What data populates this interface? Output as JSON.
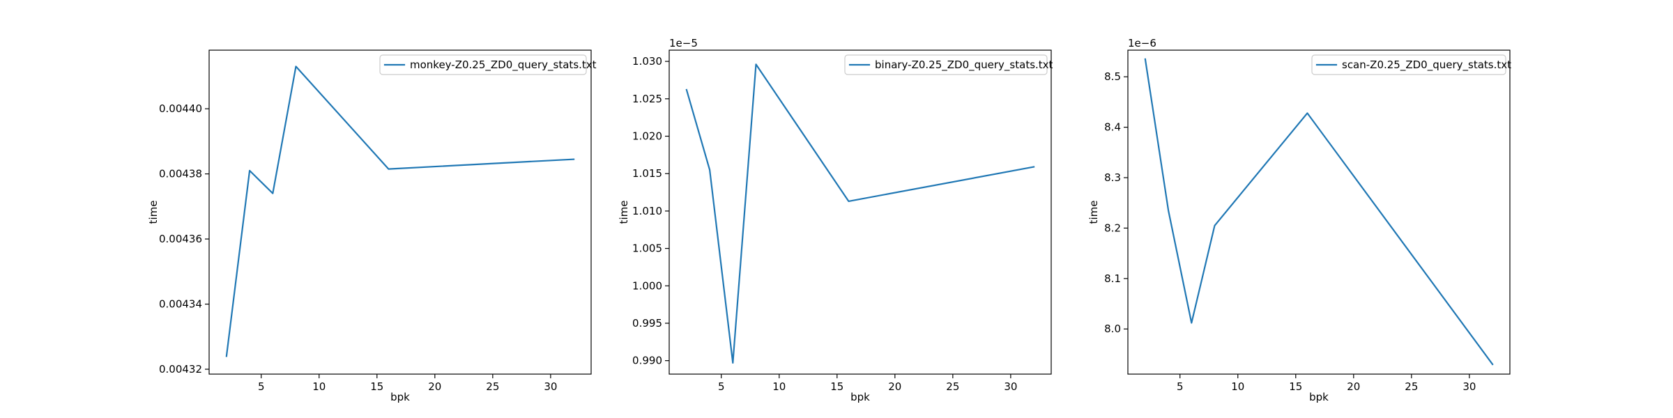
{
  "chart_data": [
    {
      "type": "line",
      "xlabel": "bpk",
      "ylabel": "time",
      "offset_label": "",
      "xlim": [
        0.5,
        33.5
      ],
      "ylim": [
        0.0043185,
        0.004418
      ],
      "xticks": [
        5,
        10,
        15,
        20,
        25,
        30
      ],
      "xtick_labels": [
        "5",
        "10",
        "15",
        "20",
        "25",
        "30"
      ],
      "yticks": [
        0.00432,
        0.00434,
        0.00436,
        0.00438,
        0.0044
      ],
      "ytick_labels": [
        "0.00432",
        "0.00434",
        "0.00436",
        "0.00438",
        "0.00440"
      ],
      "legend_position": "upper right",
      "grid": false,
      "series": [
        {
          "name": "monkey-Z0.25_ZD0_query_stats.txt",
          "color": "#1f77b4",
          "x": [
            2,
            4,
            6,
            8,
            16,
            32
          ],
          "y": [
            0.004324,
            0.004381,
            0.004374,
            0.004413,
            0.0043815,
            0.0043845
          ]
        }
      ]
    },
    {
      "type": "line",
      "xlabel": "bpk",
      "ylabel": "time",
      "offset_label": "1e−5",
      "xlim": [
        0.5,
        33.5
      ],
      "ylim": [
        0.9882,
        1.0315
      ],
      "xticks": [
        5,
        10,
        15,
        20,
        25,
        30
      ],
      "xtick_labels": [
        "5",
        "10",
        "15",
        "20",
        "25",
        "30"
      ],
      "yticks": [
        0.99,
        0.995,
        1.0,
        1.005,
        1.01,
        1.015,
        1.02,
        1.025,
        1.03
      ],
      "ytick_labels": [
        "0.990",
        "0.995",
        "1.000",
        "1.005",
        "1.010",
        "1.015",
        "1.020",
        "1.025",
        "1.030"
      ],
      "legend_position": "upper right",
      "grid": false,
      "series": [
        {
          "name": "binary-Z0.25_ZD0_query_stats.txt",
          "color": "#1f77b4",
          "x": [
            2,
            4,
            6,
            8,
            16,
            32
          ],
          "y": [
            1.0262,
            1.0155,
            0.9897,
            1.0296,
            1.0113,
            1.0159
          ]
        }
      ]
    },
    {
      "type": "line",
      "xlabel": "bpk",
      "ylabel": "time",
      "offset_label": "1e−6",
      "xlim": [
        0.5,
        33.5
      ],
      "ylim": [
        7.9105,
        8.5528
      ],
      "xticks": [
        5,
        10,
        15,
        20,
        25,
        30
      ],
      "xtick_labels": [
        "5",
        "10",
        "15",
        "20",
        "25",
        "30"
      ],
      "yticks": [
        8.0,
        8.1,
        8.2,
        8.3,
        8.4,
        8.5
      ],
      "ytick_labels": [
        "8.0",
        "8.1",
        "8.2",
        "8.3",
        "8.4",
        "8.5"
      ],
      "legend_position": "upper right",
      "grid": false,
      "series": [
        {
          "name": "scan-Z0.25_ZD0_query_stats.txt",
          "color": "#1f77b4",
          "x": [
            2,
            4,
            6,
            8,
            16,
            32
          ],
          "y": [
            8.535,
            8.235,
            8.012,
            8.205,
            8.428,
            7.93
          ]
        }
      ]
    }
  ]
}
